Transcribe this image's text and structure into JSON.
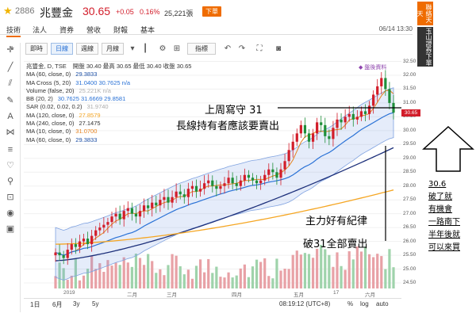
{
  "header": {
    "code": "2886",
    "name": "兆豐金",
    "price": "30.65",
    "change": "+0.05",
    "change_pct": "0.16%",
    "volume": "25,221張",
    "badge": "下單",
    "colors": {
      "up": "#d21d2a",
      "accent": "#ef6c00"
    }
  },
  "tabs": {
    "items": [
      "技術",
      "法人",
      "資券",
      "營收",
      "財報",
      "基本"
    ],
    "active": "技術",
    "datetime": "06/14 13:30"
  },
  "toolbar": {
    "periods": [
      "即時",
      "日線",
      "週線",
      "月線"
    ],
    "active_period": "日線",
    "indicator_label": "指標",
    "icons": [
      "crosshair-icon",
      "candle-style-icon",
      "undo-icon",
      "redo-icon",
      "fullscreen-icon",
      "camera-icon"
    ]
  },
  "legend": {
    "title": "兆豐金, D, TSE",
    "ohlc": "開盤 30.40  最高 30.65  最低 30.40  收盤 30.65",
    "signal": "◆ 盤後資料",
    "rows": [
      {
        "label": "MA (60, close, 0)",
        "values": "29.3833",
        "color": "#1c4fa5"
      },
      {
        "label": "MA Cross (5, 20)",
        "values": "31.0400  30.7625  n/a",
        "color": "#2a72d6"
      },
      {
        "label": "Volume (false, 20)",
        "values": "25.221K  n/a",
        "color": "#b0b0b0"
      },
      {
        "label": "BB (20, 2)",
        "values": "30.7625  31.6669  29.8581",
        "color": "#2a72d6"
      },
      {
        "label": "SAR (0.02, 0.02, 0.2)",
        "values": "31.9740",
        "color": "#aaaaaa"
      },
      {
        "label": "MA (120, close, 0)",
        "values": "27.8579",
        "color": "#f5a623"
      },
      {
        "label": "MA (240, close, 0)",
        "values": "27.1475",
        "color": "#333333"
      },
      {
        "label": "MA (10, close, 0)",
        "values": "31.0700",
        "color": "#e5821f"
      },
      {
        "label": "MA (60, close, 0)",
        "values": "29.3833",
        "color": "#1c4fa5"
      }
    ]
  },
  "price_axis": {
    "ticks": [
      "32.50",
      "32.00",
      "31.50",
      "31.00",
      "30.50",
      "30.00",
      "29.50",
      "29.00",
      "28.50",
      "28.00",
      "27.50",
      "27.00",
      "26.50",
      "26.00",
      "25.50",
      "25.00",
      "24.50"
    ],
    "current": "30.65"
  },
  "x_axis": {
    "ticks": [
      "2019",
      "二月",
      "三月",
      "四月",
      "五月",
      "17",
      "六月"
    ]
  },
  "bottom_bar": {
    "ranges": [
      "1日",
      "6月",
      "3y",
      "5y"
    ],
    "time": "08:19:12 (UTC+8)",
    "pct": "%",
    "log": "log",
    "auto": "auto"
  },
  "annotations": {
    "line1": "上周寫守  31",
    "line2": "長線持有者應該要賣出",
    "line3": "主力好有紀律",
    "line4": "破31全部賣出"
  },
  "side_stack": {
    "box1": "聯絡天天",
    "box2": "玉山證券下單"
  },
  "note": {
    "lines": [
      "30.6",
      "破了就",
      "有機會",
      "一路南下",
      "半年後就",
      "可以來買"
    ]
  },
  "chart_data": {
    "type": "candlestick",
    "title": "兆豐金, D, TSE",
    "ylim": [
      24.3,
      32.6
    ],
    "x_labels": [
      "2019",
      "二月",
      "三月",
      "四月",
      "五月",
      "17",
      "六月"
    ],
    "close": [
      25.6,
      25.5,
      25.4,
      25.7,
      25.9,
      25.8,
      26.0,
      26.1,
      25.9,
      26.2,
      26.4,
      26.5,
      26.6,
      26.7,
      26.9,
      27.0,
      26.8,
      27.1,
      27.2,
      27.0,
      26.9,
      27.1,
      27.3,
      27.2,
      27.4,
      27.3,
      27.5,
      27.6,
      27.4,
      27.6,
      27.8,
      27.7,
      27.6,
      27.9,
      28.0,
      27.8,
      27.9,
      28.1,
      28.2,
      28.0,
      27.9,
      28.0,
      28.1,
      28.3,
      28.1,
      28.0,
      28.2,
      28.4,
      28.3,
      28.2,
      28.1,
      28.2,
      28.4,
      28.6,
      28.5,
      28.3,
      28.6,
      28.9,
      29.3,
      29.6,
      29.9,
      30.2,
      29.9,
      29.6,
      29.9,
      30.3,
      30.2,
      29.8,
      29.7,
      30.1,
      30.4,
      30.3,
      30.5,
      30.6,
      30.4,
      30.5,
      30.7,
      30.6,
      30.9,
      31.3,
      31.6,
      31.9,
      31.5,
      31.0,
      30.65
    ],
    "ma60_end": 29.3833,
    "ma120_end": 27.8579,
    "ma240_end": 27.1475,
    "bb_upper_end": 31.6669,
    "bb_mid_end": 30.7625,
    "bb_lower_end": 29.8581,
    "volume_note": "Volume (false, 20) 25.221K"
  }
}
